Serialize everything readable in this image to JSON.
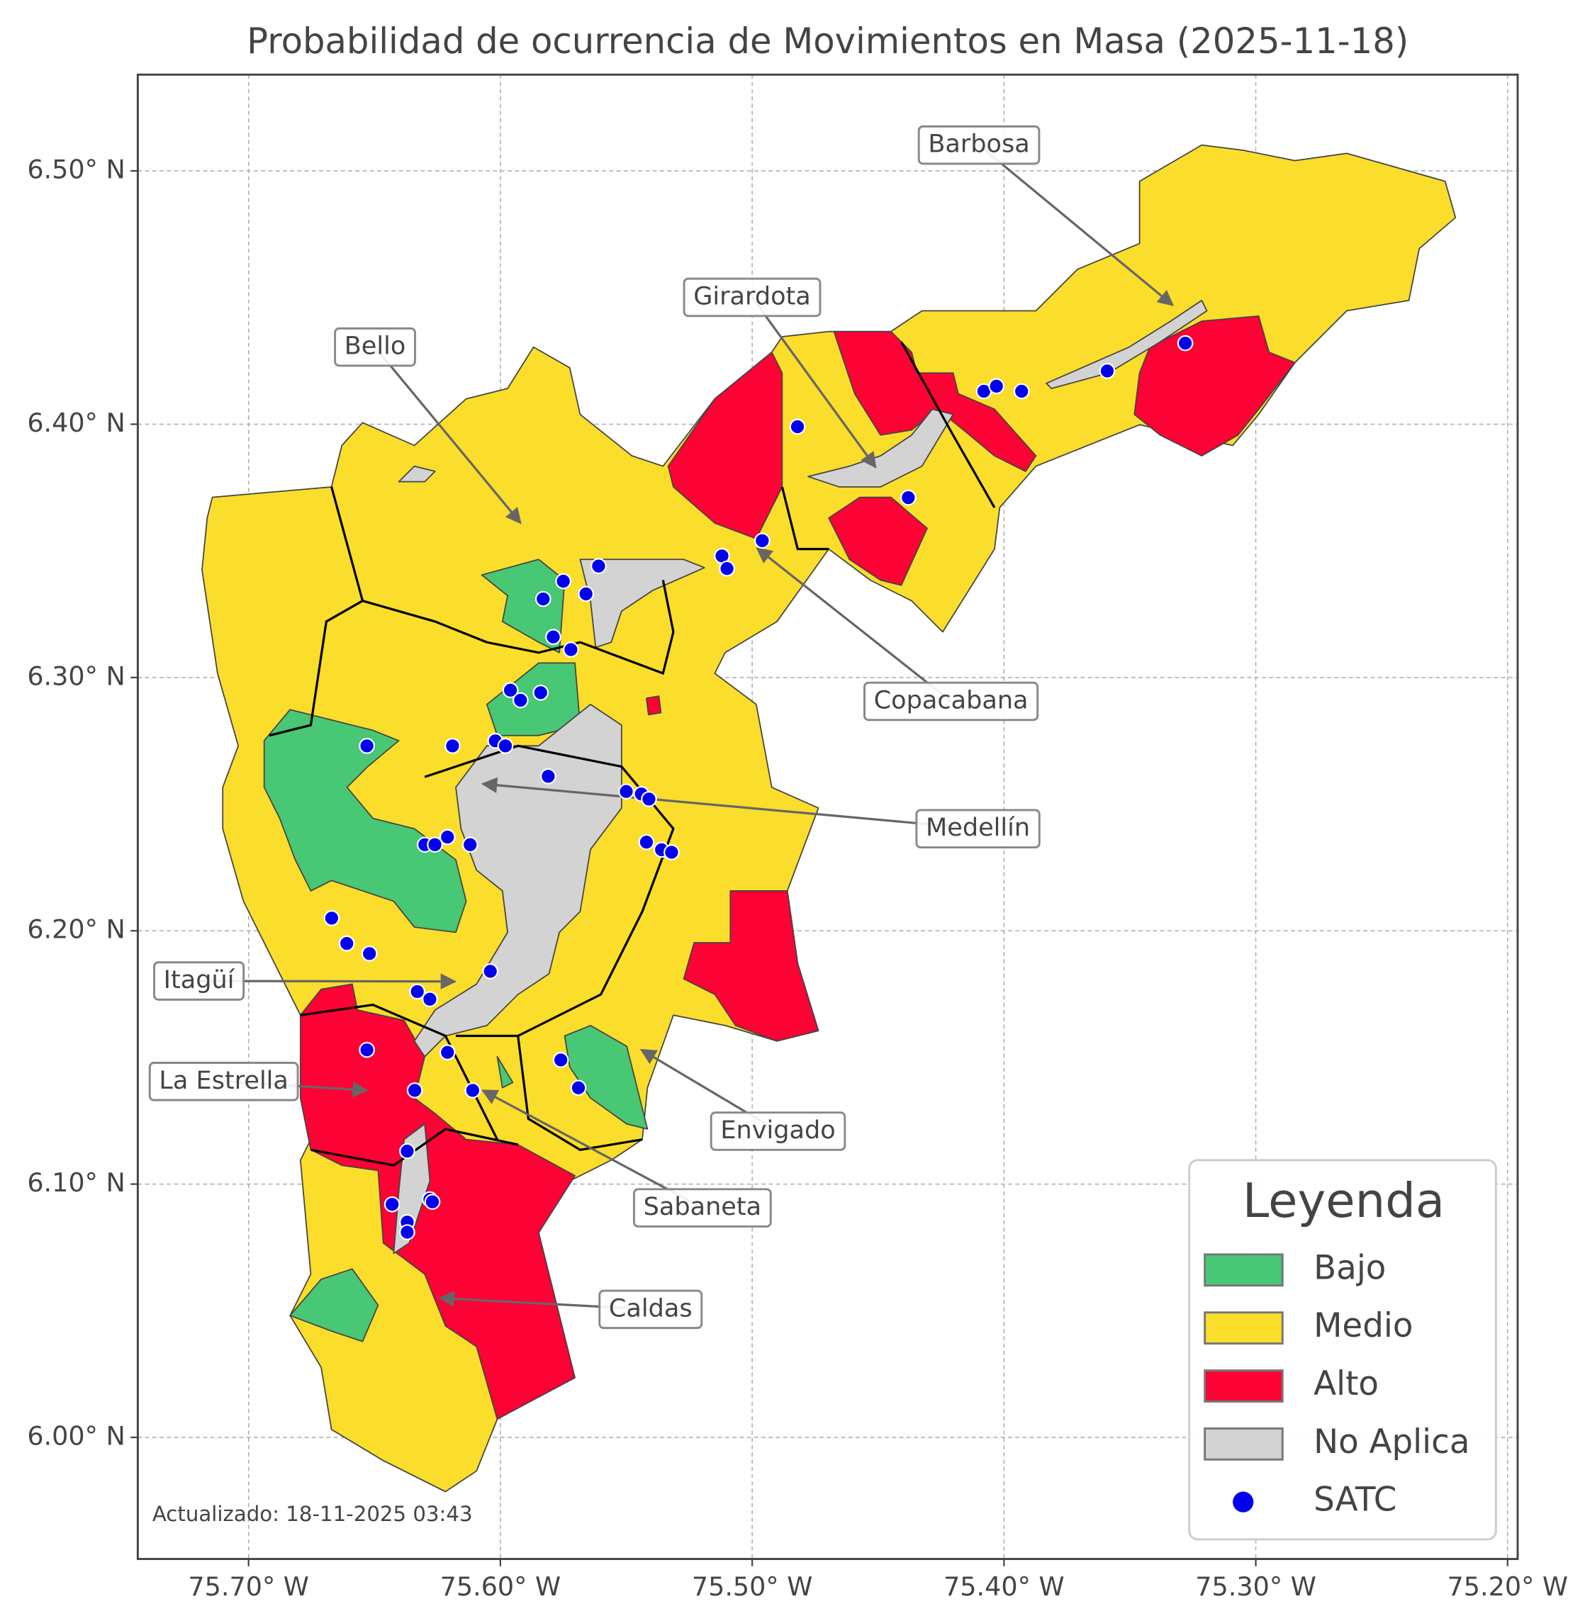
{
  "chart_data": {
    "type": "map",
    "title": "Probabilidad de ocurrencia de Movimientos en Masa (2025-11-18)",
    "note": "Actualizado: 18-11-2025 03:43",
    "xlim": [
      -75.744,
      -75.196
    ],
    "ylim": [
      5.952,
      6.538
    ],
    "xticks": [
      {
        "value": -75.7,
        "label": "75.70° W"
      },
      {
        "value": -75.6,
        "label": "75.60° W"
      },
      {
        "value": -75.5,
        "label": "75.50° W"
      },
      {
        "value": -75.4,
        "label": "75.40° W"
      },
      {
        "value": -75.3,
        "label": "75.30° W"
      },
      {
        "value": -75.2,
        "label": "75.20° W"
      }
    ],
    "yticks": [
      {
        "value": 6.0,
        "label": "6.00° N"
      },
      {
        "value": 6.1,
        "label": "6.10° N"
      },
      {
        "value": 6.2,
        "label": "6.20° N"
      },
      {
        "value": 6.3,
        "label": "6.30° N"
      },
      {
        "value": 6.4,
        "label": "6.40° N"
      },
      {
        "value": 6.5,
        "label": "6.50° N"
      }
    ],
    "grid": true,
    "legend": {
      "title": "Leyenda",
      "corner": "lower right",
      "items": [
        {
          "name": "Bajo",
          "color": "#48c774"
        },
        {
          "name": "Medio",
          "color": "#fbdd2b"
        },
        {
          "name": "Alto",
          "color": "#fd0234"
        },
        {
          "name": "No Aplica",
          "color": "#d3d3d3"
        }
      ]
    },
    "points": {
      "name": "SATC",
      "color": "#0000ee",
      "lon": [
        -75.328,
        -75.359,
        -75.408,
        -75.403,
        -75.393,
        -75.482,
        -75.438,
        -75.496,
        -75.512,
        -75.51,
        -75.561,
        -75.575,
        -75.583,
        -75.566,
        -75.579,
        -75.572,
        -75.596,
        -75.584,
        -75.592,
        -75.653,
        -75.619,
        -75.602,
        -75.598,
        -75.581,
        -75.55,
        -75.544,
        -75.541,
        -75.542,
        -75.536,
        -75.532,
        -75.63,
        -75.626,
        -75.621,
        -75.612,
        -75.667,
        -75.661,
        -75.652,
        -75.604,
        -75.633,
        -75.628,
        -75.653,
        -75.621,
        -75.576,
        -75.569,
        -75.634,
        -75.611,
        -75.637,
        -75.643,
        -75.628,
        -75.627,
        -75.637,
        -75.637
      ],
      "lat": [
        6.432,
        6.421,
        6.413,
        6.415,
        6.413,
        6.399,
        6.371,
        6.354,
        6.348,
        6.343,
        6.344,
        6.338,
        6.331,
        6.333,
        6.316,
        6.311,
        6.295,
        6.294,
        6.291,
        6.273,
        6.273,
        6.275,
        6.273,
        6.261,
        6.255,
        6.254,
        6.252,
        6.235,
        6.232,
        6.231,
        6.234,
        6.234,
        6.237,
        6.234,
        6.205,
        6.195,
        6.191,
        6.184,
        6.176,
        6.173,
        6.153,
        6.152,
        6.149,
        6.138,
        6.137,
        6.137,
        6.113,
        6.092,
        6.094,
        6.093,
        6.085,
        6.081
      ]
    },
    "annotations": [
      {
        "text": "Barbosa",
        "xy": [
          -75.333,
          6.447
        ]
      },
      {
        "text": "Girardota",
        "xy": [
          -75.451,
          6.383
        ]
      },
      {
        "text": "Bello",
        "xy": [
          -75.592,
          6.361
        ]
      },
      {
        "text": "Copacabana",
        "xy": [
          -75.498,
          6.351
        ]
      },
      {
        "text": "Medellín",
        "xy": [
          -75.607,
          6.258
        ]
      },
      {
        "text": "Itagüí",
        "xy": [
          -75.618,
          6.18
        ]
      },
      {
        "text": "La Estrella",
        "xy": [
          -75.653,
          6.137
        ]
      },
      {
        "text": "Envigado",
        "xy": [
          -75.544,
          6.153
        ]
      },
      {
        "text": "Sabaneta",
        "xy": [
          -75.607,
          6.137
        ]
      },
      {
        "text": "Caldas",
        "xy": [
          -75.624,
          6.055
        ]
      }
    ]
  }
}
